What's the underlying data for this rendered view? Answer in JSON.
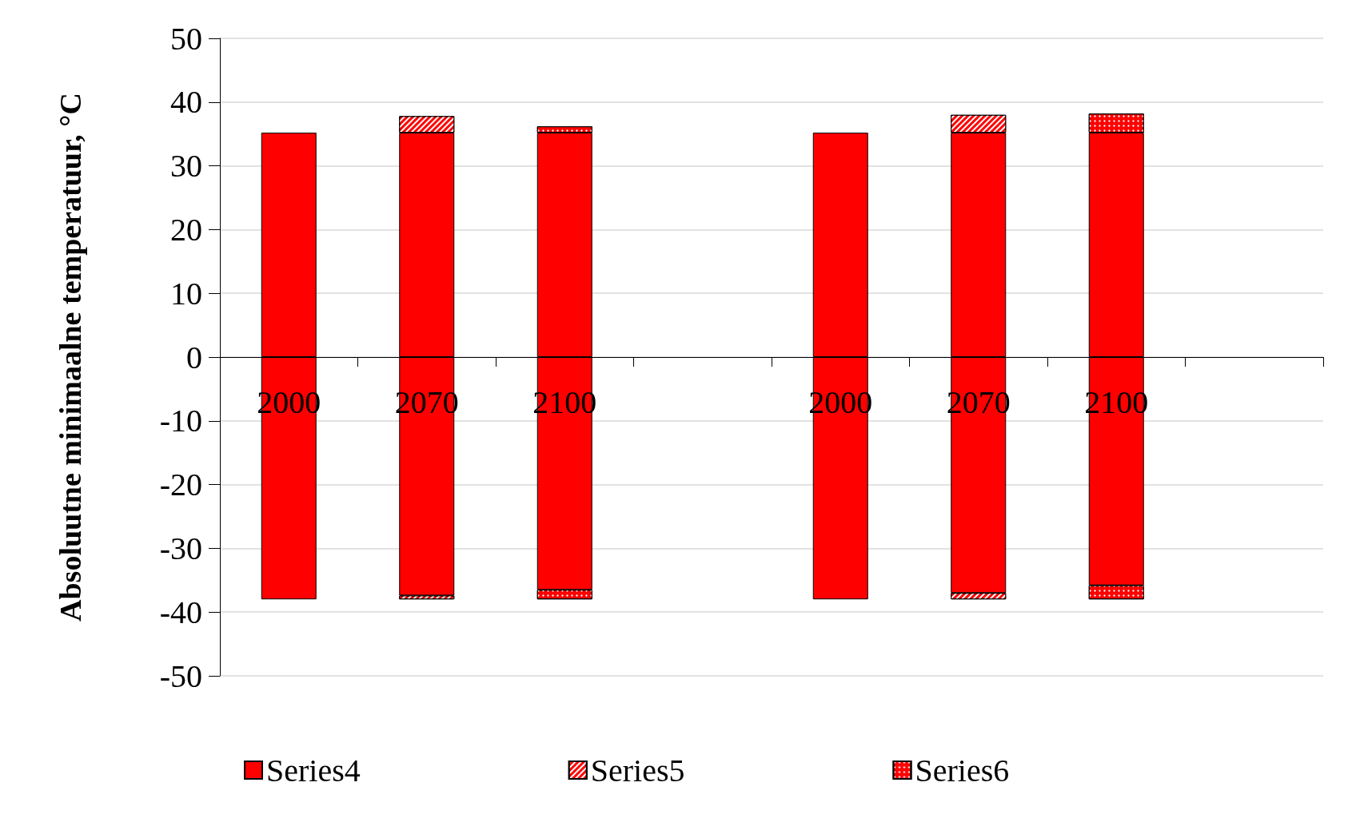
{
  "chart_data": {
    "type": "bar",
    "stacked": true,
    "ylabel": "Absoluutne minimaalne temperatuur, °C",
    "categories": [
      "2000",
      "2070",
      "2100",
      null,
      "2000",
      "2070",
      "2100",
      null
    ],
    "series": [
      {
        "name": "Series4",
        "color": "#ff0000",
        "values": [
          35.2,
          35.2,
          35.2,
          null,
          35.2,
          35.2,
          35.2,
          null
        ]
      },
      {
        "name": "Series5",
        "color": "#ff0000",
        "values": [
          null,
          2.6,
          null,
          null,
          null,
          2.8,
          null,
          null
        ]
      },
      {
        "name": "Series6",
        "color": "#ff0000",
        "values": [
          null,
          null,
          1,
          null,
          null,
          null,
          3,
          null
        ]
      },
      {
        "color": "#ff0000",
        "values": [
          -38,
          -37.4,
          -36.5,
          null,
          -38,
          -37,
          -35.8,
          null
        ]
      },
      {
        "color": "#ff0000",
        "values": [
          null,
          -0.6,
          null,
          null,
          null,
          -1,
          null,
          null
        ]
      },
      {
        "color": "#ff0000",
        "values": [
          null,
          null,
          -1.5,
          null,
          null,
          null,
          -2.2,
          null
        ]
      }
    ],
    "ylim": [
      -50,
      50
    ],
    "yticks": [
      -50,
      -40,
      -30,
      -20,
      -10,
      0,
      10,
      20,
      30,
      40,
      50
    ],
    "grid": "y",
    "legend": "bottom"
  }
}
